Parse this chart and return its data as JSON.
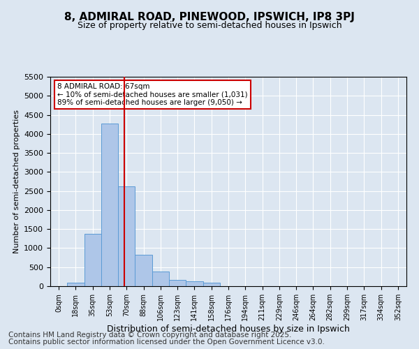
{
  "title_line1": "8, ADMIRAL ROAD, PINEWOOD, IPSWICH, IP8 3PJ",
  "title_line2": "Size of property relative to semi-detached houses in Ipswich",
  "xlabel": "Distribution of semi-detached houses by size in Ipswich",
  "ylabel": "Number of semi-detached properties",
  "bin_labels": [
    "0sqm",
    "18sqm",
    "35sqm",
    "53sqm",
    "70sqm",
    "88sqm",
    "106sqm",
    "123sqm",
    "141sqm",
    "158sqm",
    "176sqm",
    "194sqm",
    "211sqm",
    "229sqm",
    "246sqm",
    "264sqm",
    "282sqm",
    "299sqm",
    "317sqm",
    "334sqm",
    "352sqm"
  ],
  "bar_heights": [
    0,
    100,
    1380,
    4280,
    2620,
    820,
    380,
    170,
    120,
    90,
    0,
    0,
    0,
    0,
    0,
    0,
    0,
    0,
    0,
    0,
    0
  ],
  "bar_color": "#aec6e8",
  "bar_edge_color": "#5b9bd5",
  "vline_x": 3.85,
  "vline_color": "#cc0000",
  "annotation_text": "8 ADMIRAL ROAD: 67sqm\n← 10% of semi-detached houses are smaller (1,031)\n89% of semi-detached houses are larger (9,050) →",
  "annotation_box_color": "#cc0000",
  "ylim": [
    0,
    5500
  ],
  "yticks": [
    0,
    500,
    1000,
    1500,
    2000,
    2500,
    3000,
    3500,
    4000,
    4500,
    5000,
    5500
  ],
  "background_color": "#dce6f1",
  "plot_bg_color": "#dce6f1",
  "footer_line1": "Contains HM Land Registry data © Crown copyright and database right 2025.",
  "footer_line2": "Contains public sector information licensed under the Open Government Licence v3.0.",
  "footer_fontsize": 7.5,
  "grid_color": "#ffffff"
}
